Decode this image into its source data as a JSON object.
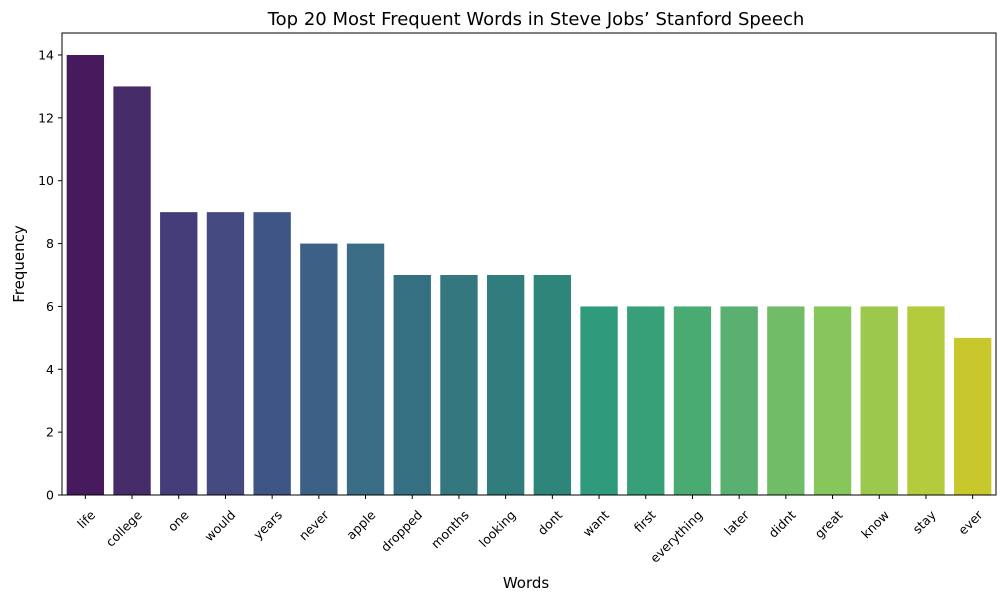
{
  "chart_data": {
    "type": "bar",
    "title": "Top 20 Most Frequent Words in Steve Jobs’ Stanford Speech",
    "xlabel": "Words",
    "ylabel": "Frequency",
    "categories": [
      "life",
      "college",
      "one",
      "would",
      "years",
      "never",
      "apple",
      "dropped",
      "months",
      "looking",
      "dont",
      "want",
      "first",
      "everything",
      "later",
      "didnt",
      "great",
      "know",
      "stay",
      "ever"
    ],
    "values": [
      14,
      13,
      9,
      9,
      9,
      8,
      8,
      7,
      7,
      7,
      7,
      6,
      6,
      6,
      6,
      6,
      6,
      6,
      6,
      5
    ],
    "ylim": [
      0,
      14.7
    ],
    "yticks": [
      0,
      2,
      4,
      6,
      8,
      10,
      12,
      14
    ],
    "grid": false,
    "legend": "none",
    "colors": [
      "#461a5c",
      "#472c6a",
      "#443d7a",
      "#444a80",
      "#3f5585",
      "#3d6186",
      "#3a6c86",
      "#356f82",
      "#34777e",
      "#317c7d",
      "#2e867b",
      "#2f9a7c",
      "#38a079",
      "#4aab72",
      "#5ab070",
      "#71bc66",
      "#86c65b",
      "#9cc84d",
      "#b4cb3c",
      "#c8c82d"
    ]
  }
}
